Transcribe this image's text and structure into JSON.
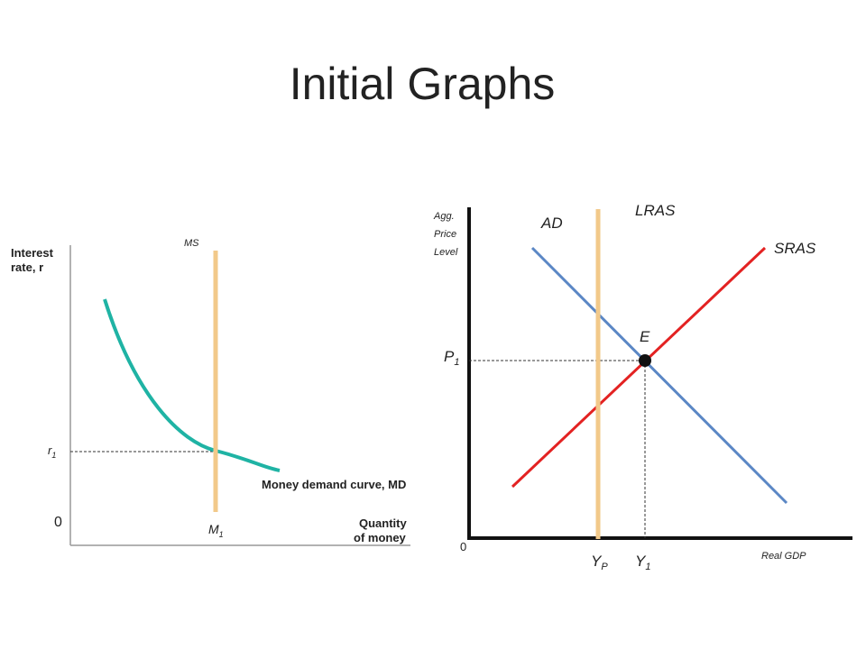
{
  "title": "Initial Graphs",
  "money_market": {
    "y_axis_label": [
      "Interest",
      "rate, r"
    ],
    "origin": "0",
    "rate_label": {
      "base": "r",
      "sub": "1"
    },
    "supply_label": "MS",
    "quantity_label": {
      "base": "M",
      "sub": "1"
    },
    "demand_label": "Money demand curve, MD",
    "x_axis_label": [
      "Quantity",
      "of money"
    ]
  },
  "ad_as": {
    "y_axis_label": [
      "Agg.",
      "Price",
      "Level"
    ],
    "lras_label": "LRAS",
    "ad_label": "AD",
    "sras_label": "SRAS",
    "equilibrium_label": "E",
    "price_label": {
      "base": "P",
      "sub": "1"
    },
    "origin": "0",
    "potential_label": {
      "base": "Y",
      "sub": "P"
    },
    "output_label": {
      "base": "Y",
      "sub": "1"
    },
    "x_axis_label": "Real GDP"
  }
}
